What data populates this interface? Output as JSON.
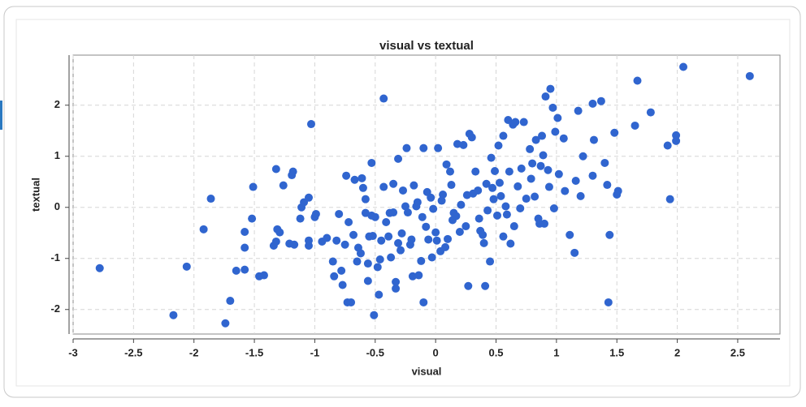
{
  "chart_data": {
    "type": "scatter",
    "title": "visual vs textual",
    "x_label": "visual",
    "y_label": "textual",
    "color": "#3065cf",
    "grid": true,
    "xlim": [
      -3,
      2.85
    ],
    "ylim": [
      -2.48,
      2.98
    ],
    "xticks": [
      -3,
      -2.5,
      -2,
      -1.5,
      -1,
      -0.5,
      0,
      0.5,
      1,
      1.5,
      2,
      2.5
    ],
    "yticks": [
      -2,
      -1,
      0,
      1,
      2
    ],
    "series": [
      {
        "name": "visual vs textual",
        "x": [
          -2.78,
          -2.17,
          -2.06,
          -1.92,
          -1.86,
          -1.74,
          -1.7,
          -1.65,
          -1.58,
          -1.58,
          -1.58,
          -1.52,
          -1.51,
          -1.46,
          -1.42,
          -1.34,
          -1.32,
          -1.31,
          -1.29,
          -1.32,
          -1.26,
          -1.18,
          -1.19,
          -1.21,
          -1.17,
          -1.12,
          -1.11,
          -1.09,
          -1.05,
          -1.05,
          -1.05,
          -1.03,
          -1.0,
          -0.99,
          -0.94,
          -0.9,
          -0.85,
          -0.84,
          -0.82,
          -0.8,
          -0.78,
          -0.77,
          -0.75,
          -0.74,
          -0.73,
          -0.7,
          -0.72,
          -0.68,
          -0.67,
          -0.65,
          -0.64,
          -0.62,
          -0.61,
          -0.6,
          -0.58,
          -0.58,
          -0.56,
          -0.56,
          -0.55,
          -0.53,
          -0.53,
          -0.52,
          -0.51,
          -0.5,
          -0.48,
          -0.47,
          -0.46,
          -0.45,
          -0.43,
          -0.43,
          -0.41,
          -0.39,
          -0.38,
          -0.37,
          -0.35,
          -0.35,
          -0.33,
          -0.33,
          -0.31,
          -0.31,
          -0.29,
          -0.28,
          -0.27,
          -0.25,
          -0.24,
          -0.23,
          -0.21,
          -0.2,
          -0.19,
          -0.18,
          -0.16,
          -0.15,
          -0.14,
          -0.12,
          -0.11,
          -0.1,
          -0.1,
          -0.08,
          -0.07,
          -0.06,
          -0.04,
          -0.03,
          -0.02,
          0,
          0.01,
          0.02,
          0.04,
          0.05,
          0.06,
          0.08,
          0.09,
          0.1,
          0.12,
          0.13,
          0.14,
          0.15,
          0.17,
          0.18,
          0.2,
          0.21,
          0.23,
          0.25,
          0.26,
          0.27,
          0.28,
          0.3,
          0.31,
          0.33,
          0.35,
          0.36,
          0.37,
          0.39,
          0.4,
          0.41,
          0.42,
          0.43,
          0.45,
          0.46,
          0.47,
          0.48,
          0.49,
          0.51,
          0.52,
          0.53,
          0.54,
          0.56,
          0.56,
          0.58,
          0.59,
          0.6,
          0.61,
          0.62,
          0.64,
          0.65,
          0.66,
          0.68,
          0.7,
          0.71,
          0.73,
          0.75,
          0.78,
          0.79,
          0.8,
          0.82,
          0.83,
          0.85,
          0.86,
          0.87,
          0.88,
          0.89,
          0.9,
          0.91,
          0.93,
          0.94,
          0.95,
          0.97,
          0.98,
          0.99,
          1.01,
          1.02,
          1.06,
          1.07,
          1.11,
          1.15,
          1.16,
          1.18,
          1.2,
          1.22,
          1.3,
          1.3,
          1.31,
          1.37,
          1.4,
          1.42,
          1.44,
          1.43,
          1.48,
          1.51,
          1.5,
          1.65,
          1.67,
          1.78,
          1.92,
          1.94,
          1.99,
          1.99,
          2.05,
          2.6
        ],
        "values": [
          -1.19,
          -2.11,
          -1.16,
          -0.43,
          0.17,
          -2.27,
          -1.83,
          -1.24,
          -1.22,
          -0.79,
          -0.48,
          -0.22,
          0.4,
          -1.35,
          -1.33,
          -0.75,
          -0.67,
          -0.43,
          -0.49,
          0.75,
          0.43,
          0.7,
          0.63,
          -0.71,
          -0.73,
          -0.22,
          0,
          0.1,
          -0.75,
          -0.65,
          0.19,
          1.63,
          -0.19,
          -0.13,
          -0.67,
          -0.6,
          -1.06,
          -1.35,
          -0.65,
          -0.13,
          -1.24,
          -1.52,
          -0.73,
          0.62,
          -1.86,
          -1.86,
          -0.29,
          -0.54,
          0.54,
          -1.06,
          -0.79,
          -0.9,
          0.57,
          0.38,
          -0.11,
          0.16,
          -1.1,
          -1.44,
          -0.57,
          -0.16,
          0.87,
          -0.56,
          -2.11,
          -0.19,
          -1.17,
          -1.71,
          -1.02,
          -0.65,
          2.13,
          0.4,
          -0.29,
          -0.57,
          -0.11,
          -0.98,
          -0.1,
          0.46,
          -1.59,
          -1.46,
          0.95,
          -0.7,
          -0.84,
          -0.51,
          0.33,
          0.02,
          1.16,
          -0.1,
          -0.73,
          -0.63,
          -1.35,
          0.43,
          0.02,
          0.1,
          -1.33,
          -1.05,
          -0.19,
          1.16,
          -1.86,
          -0.38,
          0.3,
          -0.63,
          0.19,
          -0.98,
          -0.03,
          -0.49,
          -0.65,
          1.16,
          -0.86,
          0.13,
          0.25,
          -0.78,
          0.84,
          -0.62,
          0.7,
          0.44,
          -0.25,
          -0.11,
          -0.17,
          1.24,
          -0.48,
          0.05,
          1.22,
          -0.37,
          0.24,
          -1.54,
          1.44,
          1.37,
          0.27,
          0.7,
          0.33,
          -0.22,
          -0.46,
          -0.54,
          -0.7,
          -1.54,
          0.46,
          -0.06,
          -1.06,
          0.97,
          0.38,
          0.16,
          0.71,
          -0.16,
          1.21,
          0.48,
          0.22,
          -0.57,
          1.4,
          0.02,
          -0.14,
          1.71,
          0.7,
          -0.71,
          1.62,
          -0.37,
          1.67,
          0.41,
          -0.02,
          0.76,
          1.67,
          0.17,
          1.14,
          0.56,
          0.86,
          0.21,
          1.32,
          -0.22,
          -0.32,
          0.81,
          1.4,
          1.02,
          -0.32,
          2.17,
          0.73,
          0.4,
          2.32,
          1.95,
          -0.02,
          1.48,
          1.75,
          0.65,
          1.35,
          0.32,
          -0.54,
          -0.89,
          0.52,
          1.89,
          0.22,
          1.0,
          2.03,
          0.62,
          1.32,
          2.08,
          0.87,
          0.44,
          -0.54,
          -1.86,
          1.46,
          0.32,
          0.25,
          1.6,
          2.48,
          1.86,
          1.21,
          0.16,
          1.3,
          1.41,
          2.75,
          2.57
        ]
      }
    ]
  }
}
